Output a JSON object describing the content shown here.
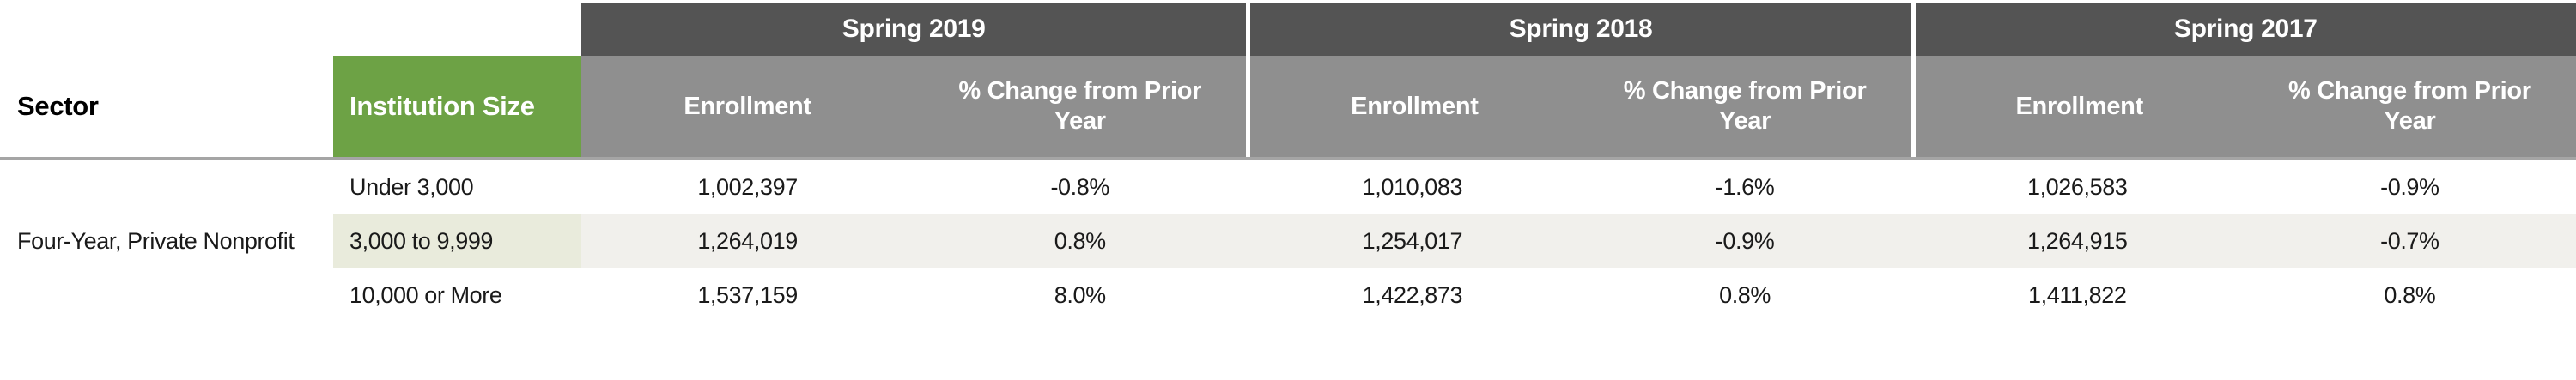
{
  "chart_data": {
    "type": "table",
    "title": "",
    "row_header_columns": {
      "sector": "Sector",
      "institution_size": "Institution Size"
    },
    "year_groups": [
      {
        "label": "Spring 2019",
        "columns": [
          "Enrollment",
          "% Change from Prior Year"
        ]
      },
      {
        "label": "Spring 2018",
        "columns": [
          "Enrollment",
          "% Change from Prior Year"
        ]
      },
      {
        "label": "Spring 2017",
        "columns": [
          "Enrollment",
          "% Change from Prior Year"
        ]
      }
    ],
    "sector": "Four-Year, Private Nonprofit",
    "rows": [
      {
        "institution_size": "Under 3,000",
        "cells": [
          "1,002,397",
          "-0.8%",
          "1,010,083",
          "-1.6%",
          "1,026,583",
          "-0.9%"
        ]
      },
      {
        "institution_size": "3,000 to 9,999",
        "cells": [
          "1,264,019",
          "0.8%",
          "1,254,017",
          "-0.9%",
          "1,264,915",
          "-0.7%"
        ]
      },
      {
        "institution_size": "10,000 or More",
        "cells": [
          "1,537,159",
          "8.0%",
          "1,422,873",
          "0.8%",
          "1,411,822",
          "0.8%"
        ]
      }
    ],
    "numeric": {
      "enrollment": {
        "Spring 2019": [
          1002397,
          1264019,
          1537159
        ],
        "Spring 2018": [
          1010083,
          1254017,
          1422873
        ],
        "Spring 2017": [
          1026583,
          1264915,
          1411822
        ]
      },
      "pct_change_from_prior_year": {
        "Spring 2019": [
          -0.8,
          0.8,
          8.0
        ],
        "Spring 2018": [
          -1.6,
          -0.9,
          0.8
        ],
        "Spring 2017": [
          -0.9,
          -0.7,
          0.8
        ]
      }
    },
    "colors": {
      "year_band": "#545454",
      "subheader_band": "#8F8F8F",
      "institution_size_header": "#6DA245",
      "stripe_size_cell": "#E9EBDC",
      "stripe_data_cell": "#F1F0EC",
      "header_rule": "#A5A5A5",
      "header_text": "#ffffff",
      "body_text": "#1a1a1a"
    },
    "layout_hints": {
      "grid": "off",
      "group_dividers": "white vertical lines between year groups in header only",
      "striped_row_index": 1
    }
  }
}
